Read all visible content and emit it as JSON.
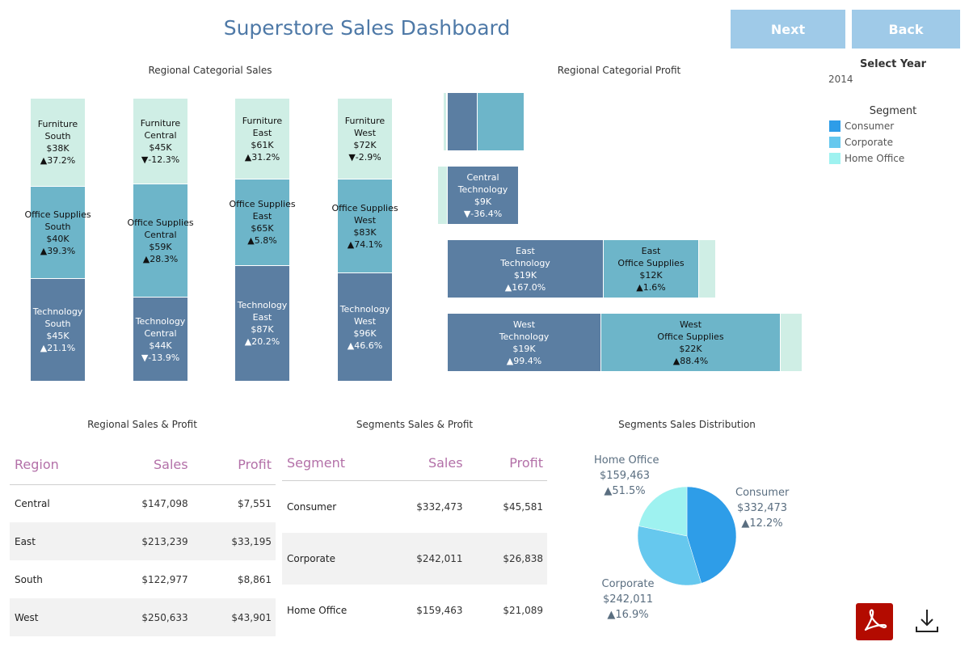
{
  "header": {
    "title": "Superstore Sales Dashboard",
    "next_label": "Next",
    "back_label": "Back"
  },
  "filters": {
    "select_year_label": "Select Year",
    "year_value": "2014"
  },
  "legend": {
    "title": "Segment",
    "items": [
      {
        "label": "Consumer",
        "color": "#2e9de8"
      },
      {
        "label": "Corporate",
        "color": "#66c8ee"
      },
      {
        "label": "Home Office",
        "color": "#9ef2f0"
      }
    ]
  },
  "sales_chart": {
    "title": "Regional Categorial Sales",
    "regions": [
      {
        "furniture": [
          "Furniture",
          "South",
          "$38K",
          "▲37.2%"
        ],
        "office": [
          "Office Supplies",
          "South",
          "$40K",
          "▲39.3%"
        ],
        "tech": [
          "Technology",
          "South",
          "$45K",
          "▲21.1%"
        ]
      },
      {
        "furniture": [
          "Furniture",
          "Central",
          "$45K",
          "▼-12.3%"
        ],
        "office": [
          "Office Supplies",
          "Central",
          "$59K",
          "▲28.3%"
        ],
        "tech": [
          "Technology",
          "Central",
          "$44K",
          "▼-13.9%"
        ]
      },
      {
        "furniture": [
          "Furniture",
          "East",
          "$61K",
          "▲31.2%"
        ],
        "office": [
          "Office Supplies",
          "East",
          "$65K",
          "▲5.8%"
        ],
        "tech": [
          "Technology",
          "East",
          "$87K",
          "▲20.2%"
        ]
      },
      {
        "furniture": [
          "Furniture",
          "West",
          "$72K",
          "▼-2.9%"
        ],
        "office": [
          "Office Supplies",
          "West",
          "$83K",
          "▲74.1%"
        ],
        "tech": [
          "Technology",
          "West",
          "$96K",
          "▲46.6%"
        ]
      }
    ]
  },
  "profit_chart": {
    "title": "Regional Categorial Profit",
    "central_tech": [
      "Central",
      "Technology",
      "$9K",
      "▼-36.4%"
    ],
    "east_tech": [
      "East",
      "Technology",
      "$19K",
      "▲167.0%"
    ],
    "east_office": [
      "East",
      "Office Supplies",
      "$12K",
      "▲1.6%"
    ],
    "west_tech": [
      "West",
      "Technology",
      "$19K",
      "▲99.4%"
    ],
    "west_office": [
      "West",
      "Office Supplies",
      "$22K",
      "▲88.4%"
    ]
  },
  "regional_table": {
    "title": "Regional Sales & Profit",
    "headers": [
      "Region",
      "Sales",
      "Profit"
    ],
    "rows": [
      [
        "Central",
        "$147,098",
        "$7,551"
      ],
      [
        "East",
        "$213,239",
        "$33,195"
      ],
      [
        "South",
        "$122,977",
        "$8,861"
      ],
      [
        "West",
        "$250,633",
        "$43,901"
      ]
    ]
  },
  "segment_table": {
    "title": "Segments Sales & Profit",
    "headers": [
      "Segment",
      "Sales",
      "Profit"
    ],
    "rows": [
      [
        "Consumer",
        "$332,473",
        "$45,581"
      ],
      [
        "Corporate",
        "$242,011",
        "$26,838"
      ],
      [
        "Home Office",
        "$159,463",
        "$21,089"
      ]
    ]
  },
  "chart_data": {
    "type": "pie",
    "title": "Segments Sales Distribution",
    "slices": [
      {
        "label": "Consumer",
        "value": 332473,
        "display": "$332,473",
        "change": "▲12.2%",
        "color": "#2e9de8"
      },
      {
        "label": "Corporate",
        "value": 242011,
        "display": "$242,011",
        "change": "▲16.9%",
        "color": "#66c8ee"
      },
      {
        "label": "Home Office",
        "value": 159463,
        "display": "$159,463",
        "change": "▲51.5%",
        "color": "#9ef2f0"
      }
    ]
  }
}
